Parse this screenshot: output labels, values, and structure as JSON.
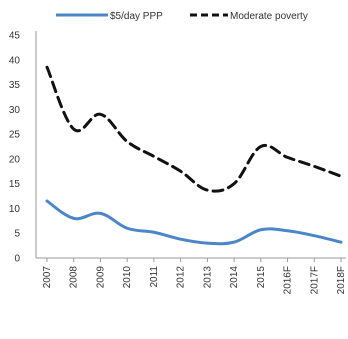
{
  "chart_data": {
    "type": "line",
    "title": "",
    "xlabel": "",
    "ylabel": "",
    "x": [
      "2007",
      "2008",
      "2009",
      "2010",
      "2011",
      "2012",
      "2013",
      "2014",
      "2015",
      "2016F",
      "2017F",
      "2018F"
    ],
    "series": [
      {
        "name": "$5/day PPP",
        "style": "solid",
        "color": "#4a86c8",
        "values": [
          11.5,
          8,
          9,
          6,
          5.2,
          3.8,
          3,
          3.2,
          5.7,
          5.5,
          4.5,
          3.2
        ]
      },
      {
        "name": "Moderate poverty",
        "style": "dashed",
        "color": "#111111",
        "values": [
          38.5,
          26,
          29,
          23.5,
          20.5,
          17.5,
          13.7,
          15,
          22.5,
          20.3,
          18.5,
          16.5
        ]
      }
    ],
    "ylim": [
      0,
      45
    ],
    "yticks": [
      "0",
      "5",
      "10",
      "15",
      "20",
      "25",
      "30",
      "35",
      "40",
      "45"
    ],
    "grid": false,
    "legend_position": "top"
  }
}
